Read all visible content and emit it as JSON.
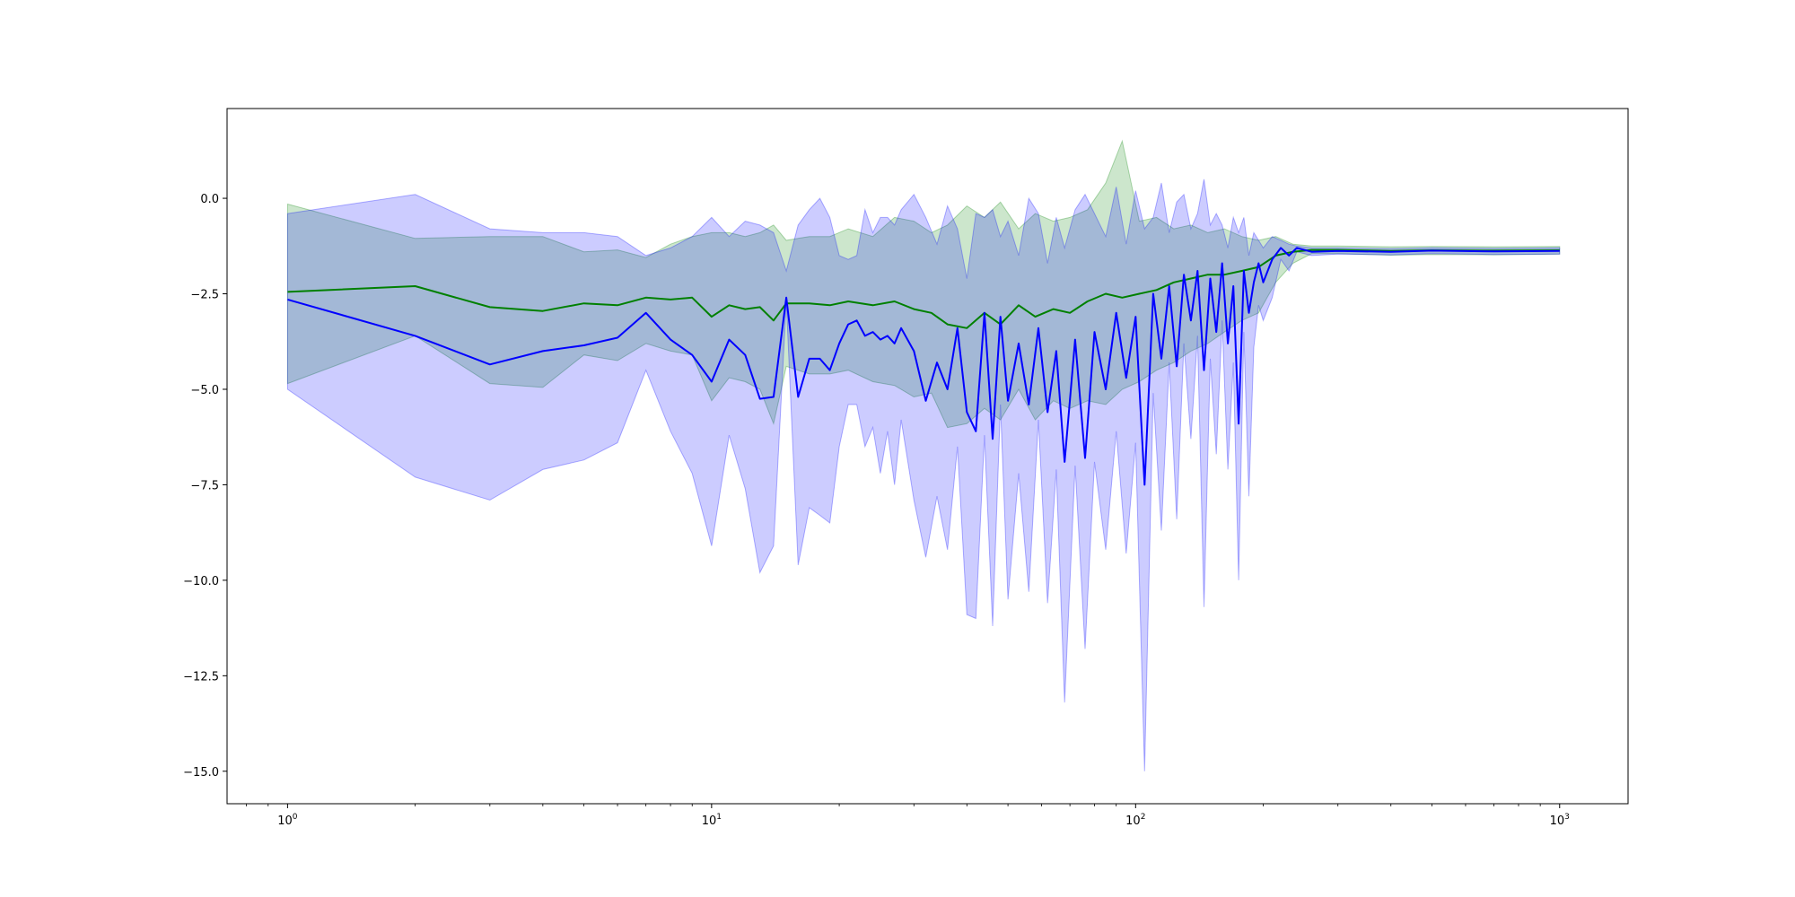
{
  "chart_data": {
    "type": "line",
    "title": "",
    "xlabel": "",
    "ylabel": "",
    "x_scale": "log",
    "xlim": [
      0.72,
      1450
    ],
    "ylim": [
      -15.85,
      2.35
    ],
    "grid": false,
    "legend": "none",
    "x_ticks": [
      {
        "value": 1,
        "base": "10",
        "exp": "0"
      },
      {
        "value": 10,
        "base": "10",
        "exp": "1"
      },
      {
        "value": 100,
        "base": "10",
        "exp": "2"
      },
      {
        "value": 1000,
        "base": "10",
        "exp": "3"
      }
    ],
    "y_ticks": [
      {
        "value": 0,
        "label": "0.0"
      },
      {
        "value": -2.5,
        "label": "−2.5"
      },
      {
        "value": -5,
        "label": "−5.0"
      },
      {
        "value": -7.5,
        "label": "−7.5"
      },
      {
        "value": -10,
        "label": "−10.0"
      },
      {
        "value": -12.5,
        "label": "−12.5"
      },
      {
        "value": -15,
        "label": "−15.0"
      }
    ],
    "series": [
      {
        "color": "#008000",
        "band_color": "#008000",
        "band_opacity": 0.2,
        "x": [
          1,
          2,
          3,
          4,
          5,
          6,
          7,
          8,
          9,
          10,
          11,
          12,
          13,
          14,
          15,
          17,
          19,
          21,
          24,
          27,
          30,
          33,
          36,
          40,
          44,
          48,
          53,
          58,
          64,
          70,
          77,
          85,
          93,
          102,
          112,
          123,
          135,
          148,
          162,
          178,
          195,
          214,
          235,
          260,
          300,
          400,
          500,
          700,
          1000
        ],
        "y": [
          -2.45,
          -2.3,
          -2.85,
          -2.95,
          -2.75,
          -2.8,
          -2.6,
          -2.65,
          -2.6,
          -3.1,
          -2.8,
          -2.9,
          -2.85,
          -3.2,
          -2.75,
          -2.75,
          -2.8,
          -2.7,
          -2.8,
          -2.7,
          -2.9,
          -3.0,
          -3.3,
          -3.4,
          -3.0,
          -3.3,
          -2.8,
          -3.1,
          -2.9,
          -3.0,
          -2.7,
          -2.5,
          -2.6,
          -2.5,
          -2.4,
          -2.2,
          -2.1,
          -2.0,
          -2.0,
          -1.9,
          -1.8,
          -1.5,
          -1.4,
          -1.35,
          -1.35,
          -1.38,
          -1.36,
          -1.37,
          -1.36
        ],
        "upper": [
          -0.15,
          -1.05,
          -1.0,
          -1.0,
          -1.4,
          -1.35,
          -1.55,
          -1.2,
          -1.0,
          -0.9,
          -0.9,
          -1.0,
          -0.9,
          -0.7,
          -1.1,
          -1.0,
          -1.0,
          -0.8,
          -1.0,
          -0.5,
          -0.6,
          -0.9,
          -0.7,
          -0.2,
          -0.5,
          -0.1,
          -0.8,
          -0.4,
          -0.6,
          -0.5,
          -0.3,
          0.4,
          1.5,
          -0.6,
          -0.5,
          -0.8,
          -0.7,
          -0.9,
          -0.8,
          -1.0,
          -1.1,
          -1.0,
          -1.2,
          -1.25,
          -1.25,
          -1.27,
          -1.26,
          -1.27,
          -1.26
        ],
        "lower": [
          -4.85,
          -3.6,
          -4.85,
          -4.95,
          -4.1,
          -4.25,
          -3.8,
          -4.0,
          -4.1,
          -5.3,
          -4.7,
          -4.8,
          -5.0,
          -5.9,
          -4.4,
          -4.6,
          -4.6,
          -4.5,
          -4.8,
          -4.9,
          -5.2,
          -5.1,
          -6.0,
          -5.9,
          -5.5,
          -5.8,
          -5.0,
          -5.8,
          -5.3,
          -5.5,
          -5.3,
          -5.4,
          -5.0,
          -4.8,
          -4.5,
          -4.3,
          -4.0,
          -3.8,
          -3.5,
          -3.2,
          -3.0,
          -2.2,
          -1.7,
          -1.45,
          -1.45,
          -1.49,
          -1.47,
          -1.48,
          -1.46
        ]
      },
      {
        "color": "#0000ff",
        "band_color": "#0000ff",
        "band_opacity": 0.2,
        "x": [
          1,
          2,
          3,
          4,
          5,
          6,
          7,
          8,
          9,
          10,
          11,
          12,
          13,
          14,
          15,
          16,
          17,
          18,
          19,
          20,
          21,
          22,
          23,
          24,
          25,
          26,
          27,
          28,
          30,
          32,
          34,
          36,
          38,
          40,
          42,
          44,
          46,
          48,
          50,
          53,
          56,
          59,
          62,
          65,
          68,
          72,
          76,
          80,
          85,
          90,
          95,
          100,
          105,
          110,
          115,
          120,
          125,
          130,
          135,
          140,
          145,
          150,
          155,
          160,
          165,
          170,
          175,
          180,
          185,
          190,
          195,
          200,
          210,
          220,
          230,
          240,
          260,
          300,
          400,
          500,
          700,
          1000
        ],
        "y": [
          -2.65,
          -3.6,
          -4.35,
          -4.0,
          -3.85,
          -3.65,
          -3.0,
          -3.7,
          -4.1,
          -4.8,
          -3.7,
          -4.1,
          -5.25,
          -5.2,
          -2.6,
          -5.2,
          -4.2,
          -4.2,
          -4.5,
          -3.8,
          -3.3,
          -3.2,
          -3.6,
          -3.5,
          -3.7,
          -3.6,
          -3.8,
          -3.4,
          -4.0,
          -5.3,
          -4.3,
          -5.0,
          -3.4,
          -5.6,
          -6.1,
          -3.0,
          -6.3,
          -3.1,
          -5.3,
          -3.8,
          -5.4,
          -3.4,
          -5.6,
          -4.0,
          -6.9,
          -3.7,
          -6.8,
          -3.5,
          -5.0,
          -3.0,
          -4.7,
          -3.1,
          -7.5,
          -2.5,
          -4.2,
          -2.3,
          -4.4,
          -2.0,
          -3.2,
          -1.9,
          -4.5,
          -2.1,
          -3.5,
          -1.7,
          -3.8,
          -2.3,
          -5.9,
          -1.9,
          -3.0,
          -2.2,
          -1.7,
          -2.2,
          -1.6,
          -1.3,
          -1.5,
          -1.3,
          -1.4,
          -1.38,
          -1.4,
          -1.37,
          -1.39,
          -1.38
        ],
        "upper": [
          -0.4,
          0.1,
          -0.8,
          -0.9,
          -0.9,
          -1.0,
          -1.5,
          -1.3,
          -1.0,
          -0.5,
          -1.0,
          -0.6,
          -0.7,
          -0.9,
          -1.9,
          -0.7,
          -0.3,
          0.0,
          -0.5,
          -1.5,
          -1.6,
          -1.5,
          -0.3,
          -0.9,
          -0.5,
          -0.5,
          -0.7,
          -0.3,
          0.1,
          -0.5,
          -1.2,
          -0.2,
          -0.8,
          -2.1,
          -0.4,
          -0.5,
          -0.3,
          -1.0,
          -0.6,
          -1.5,
          0.0,
          -0.4,
          -1.7,
          -0.5,
          -1.3,
          -0.3,
          0.1,
          -0.4,
          -1.0,
          0.3,
          -1.2,
          0.2,
          -0.8,
          -0.5,
          0.4,
          -0.9,
          -0.1,
          0.1,
          -0.8,
          -0.4,
          0.5,
          -0.7,
          -0.4,
          -0.7,
          -1.3,
          -0.5,
          -0.9,
          -0.5,
          -1.5,
          -0.9,
          -1.1,
          -1.3,
          -1.0,
          -1.1,
          -1.2,
          -1.25,
          -1.3,
          -1.3,
          -1.32,
          -1.3,
          -1.31,
          -1.3
        ],
        "lower": [
          -5.0,
          -7.3,
          -7.9,
          -7.1,
          -6.85,
          -6.4,
          -4.5,
          -6.1,
          -7.2,
          -9.1,
          -6.2,
          -7.6,
          -9.8,
          -9.1,
          -2.7,
          -9.6,
          -8.1,
          -8.3,
          -8.5,
          -6.5,
          -5.4,
          -5.4,
          -6.5,
          -6.0,
          -7.2,
          -6.1,
          -7.5,
          -5.8,
          -7.9,
          -9.4,
          -7.8,
          -9.2,
          -6.5,
          -10.9,
          -11.0,
          -6.2,
          -11.2,
          -5.4,
          -10.5,
          -7.2,
          -10.3,
          -5.8,
          -10.6,
          -7.1,
          -13.2,
          -7.0,
          -11.8,
          -6.9,
          -9.2,
          -6.1,
          -9.3,
          -6.4,
          -15.0,
          -5.1,
          -8.7,
          -4.3,
          -8.4,
          -3.8,
          -6.3,
          -3.6,
          -10.7,
          -4.2,
          -6.7,
          -3.2,
          -7.1,
          -4.3,
          -10.0,
          -3.5,
          -7.8,
          -3.9,
          -2.8,
          -3.2,
          -2.6,
          -1.6,
          -1.9,
          -1.4,
          -1.5,
          -1.46,
          -1.48,
          -1.45,
          -1.47,
          -1.46
        ]
      }
    ]
  }
}
